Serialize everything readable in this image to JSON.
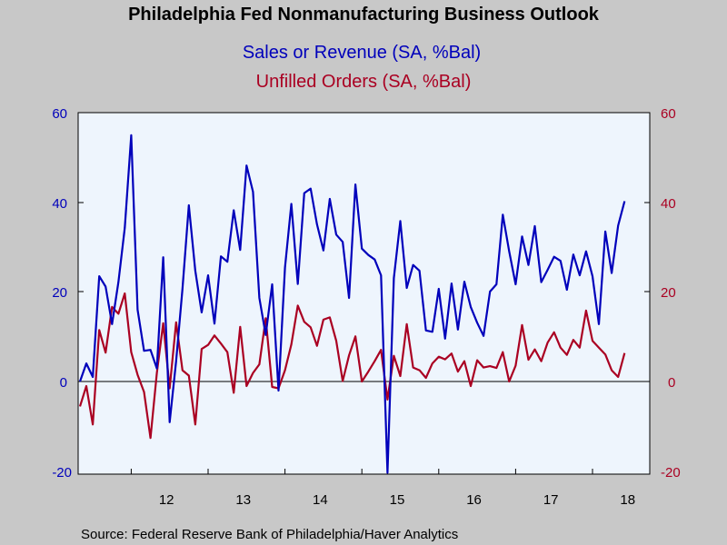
{
  "chart_data": {
    "type": "line",
    "title": "Philadelphia Fed Nonmanufacturing Business Outlook",
    "source": "Source:  Federal Reserve Bank of Philadelphia/Haver Analytics",
    "x_start": "2011-05",
    "x_tick_labels": [
      "12",
      "13",
      "14",
      "15",
      "16",
      "17",
      "18"
    ],
    "ylim_left": [
      -20,
      60
    ],
    "ylim_right": [
      -20,
      60
    ],
    "y_ticks_left": [
      "60",
      "40",
      "20",
      "0",
      "-20"
    ],
    "y_ticks_right": [
      "60",
      "40",
      "20",
      "0",
      "-20"
    ],
    "zero_line": true,
    "grid": false,
    "series": [
      {
        "name": "Sales or Revenue (SA, %Bal)",
        "axis": "left",
        "color": "#0000bb",
        "values": [
          0.5,
          4.5,
          1.5,
          23.8,
          21.5,
          13.2,
          22.5,
          34.5,
          55.0,
          16.4,
          7.3,
          7.5,
          3.4,
          28.0,
          -8.5,
          5.0,
          21.0,
          39.5,
          25.0,
          15.8,
          24.0,
          13.3,
          28.2,
          27.0,
          38.4,
          29.6,
          48.3,
          42.5,
          19.0,
          10.8,
          22.0,
          -1.5,
          25.7,
          39.8,
          22.1,
          42.2,
          43.2,
          35.3,
          29.5,
          40.9,
          33.0,
          31.4,
          19.0,
          44.1,
          29.9,
          28.5,
          27.5,
          24.0,
          -19.7,
          23.4,
          36.0,
          21.2,
          26.3,
          25.0,
          11.8,
          11.5,
          21.0,
          10.0,
          22.2,
          12.0,
          22.6,
          17.0,
          13.5,
          10.6,
          20.4,
          22.0,
          37.4,
          29.3,
          22.0,
          32.6,
          26.3,
          34.9,
          22.5,
          25.2,
          28.1,
          27.2,
          20.8,
          28.6,
          24.0,
          29.3,
          23.8,
          13.2,
          33.7,
          24.5,
          35.0,
          40.4
        ]
      },
      {
        "name": "Unfilled Orders (SA, %Bal)",
        "axis": "right",
        "color": "#aa0022",
        "values": [
          -5.0,
          -0.5,
          -9.0,
          11.9,
          6.9,
          17.0,
          15.5,
          20.0,
          7.0,
          2.0,
          -1.8,
          -12.0,
          2.4,
          13.4,
          -1.0,
          13.6,
          3.0,
          1.8,
          -9.0,
          7.7,
          8.6,
          10.7,
          8.9,
          7.0,
          -2.0,
          12.6,
          -0.5,
          2.4,
          4.3,
          14.5,
          -0.7,
          -1.0,
          3.0,
          8.7,
          17.3,
          13.7,
          12.5,
          8.4,
          14.2,
          14.7,
          9.5,
          0.6,
          6.3,
          10.5,
          0.5,
          2.7,
          5.0,
          7.5,
          -3.5,
          6.2,
          1.7,
          13.2,
          3.6,
          3.0,
          1.3,
          4.5,
          6.0,
          5.4,
          6.7,
          2.7,
          5.0,
          -0.5,
          5.2,
          3.6,
          3.9,
          3.5,
          7.0,
          0.5,
          4.0,
          13.0,
          5.3,
          7.6,
          5.0,
          9.1,
          11.4,
          8.0,
          6.4,
          9.7,
          8.0,
          16.2,
          9.5,
          8.0,
          6.5,
          3.0,
          1.5,
          6.8
        ]
      }
    ]
  }
}
